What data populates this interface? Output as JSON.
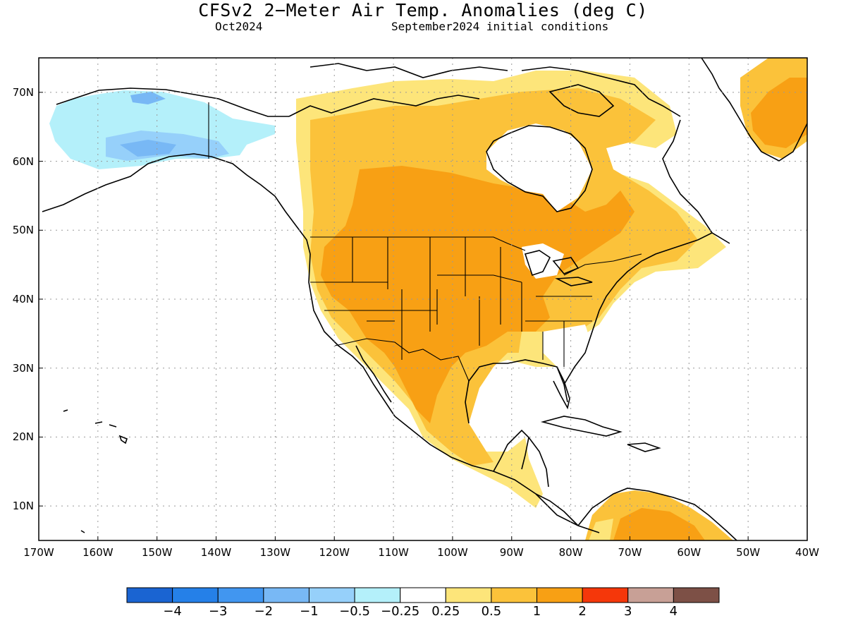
{
  "title": "CFSv2 2−Meter Air Temp. Anomalies (deg C)",
  "subtitle_left": "Oct2024",
  "subtitle_right": "September2024 initial conditions",
  "lat_labels": [
    "70N",
    "60N",
    "50N",
    "40N",
    "30N",
    "20N",
    "10N"
  ],
  "lat_values": [
    70,
    60,
    50,
    40,
    30,
    20,
    10
  ],
  "lon_labels": [
    "170W",
    "160W",
    "150W",
    "140W",
    "130W",
    "120W",
    "110W",
    "100W",
    "90W",
    "80W",
    "70W",
    "60W",
    "50W",
    "40W"
  ],
  "lon_values": [
    -170,
    -160,
    -150,
    -140,
    -130,
    -120,
    -110,
    -100,
    -90,
    -80,
    -70,
    -60,
    -50,
    -40
  ],
  "extent": {
    "lon_min": -170,
    "lon_max": -40,
    "lat_min": 5,
    "lat_max": 75
  },
  "colorbar": {
    "colors": [
      "#1a64d2",
      "#2580e8",
      "#4196f0",
      "#78b8f5",
      "#96d0fa",
      "#b4f0fa",
      "#ffffff",
      "#fde57a",
      "#fbc23a",
      "#f8a014",
      "#f5370a",
      "#c8a096",
      "#7d5046"
    ],
    "labels": [
      "−4",
      "−3",
      "−2",
      "−1",
      "−0.5",
      "−0.25",
      "0.25",
      "0.5",
      "1",
      "2",
      "3",
      "4"
    ]
  }
}
